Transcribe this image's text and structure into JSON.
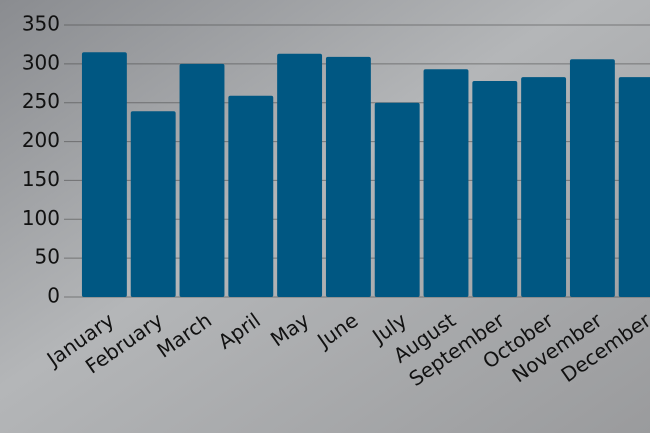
{
  "chart_data": {
    "type": "bar",
    "categories": [
      "January",
      "February",
      "March",
      "April",
      "May",
      "June",
      "July",
      "August",
      "September",
      "October",
      "November",
      "December"
    ],
    "values": [
      315,
      239,
      300,
      259,
      313,
      309,
      250,
      293,
      278,
      283,
      306,
      283
    ],
    "color": "#005782",
    "ylim": [
      0,
      350
    ],
    "yticks": [
      0,
      50,
      100,
      150,
      200,
      250,
      300,
      350
    ],
    "grid": true
  }
}
